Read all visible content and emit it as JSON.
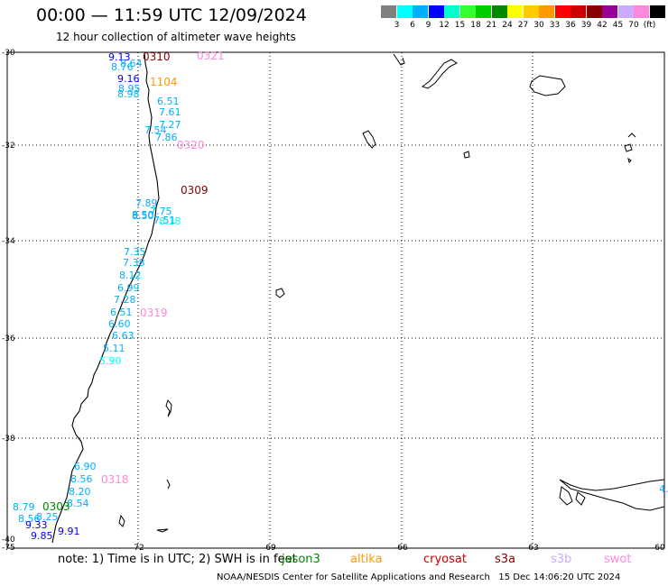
{
  "header": {
    "title": "00:00 — 11:59 UTC 12/09/2024",
    "subtitle": "12 hour collection of altimeter wave heights"
  },
  "colorbar": {
    "colors": [
      "#808080",
      "#00ffff",
      "#00b0ff",
      "#0000ff",
      "#00ffcc",
      "#33ff33",
      "#00cc00",
      "#008800",
      "#ffff00",
      "#ffcc00",
      "#ff9900",
      "#ff0000",
      "#cc0000",
      "#880000",
      "#990099",
      "#ccaaff",
      "#ff88dd",
      "#000000"
    ],
    "labels": [
      "3",
      "6",
      "9",
      "12",
      "15",
      "18",
      "21",
      "24",
      "27",
      "30",
      "33",
      "36",
      "39",
      "42",
      "45",
      "70",
      "(ft)"
    ]
  },
  "axes": {
    "lat_labels": [
      "-30",
      "-32",
      "-34",
      "-36",
      "-38",
      "-40"
    ],
    "lon_labels": [
      "-75",
      "-72",
      "-69",
      "-66",
      "-63",
      "-60"
    ]
  },
  "passes": [
    {
      "label": "0310",
      "color": "#880000"
    },
    {
      "label": "1104",
      "color": "#ff9900"
    },
    {
      "label": "0321",
      "color": "#ff88dd"
    },
    {
      "label": "0320",
      "color": "#ff88dd"
    },
    {
      "label": "0309",
      "color": "#880000"
    },
    {
      "label": "0319",
      "color": "#ff88dd"
    },
    {
      "label": "0318",
      "color": "#ff88dd"
    },
    {
      "label": "0303",
      "color": "#008800"
    }
  ],
  "wave_heights": [
    {
      "v": "9.13",
      "c": "#0000ff"
    },
    {
      "v": "8.76",
      "c": "#00b0ff"
    },
    {
      "v": "8.64",
      "c": "#00b0ff"
    },
    {
      "v": "9.16",
      "c": "#0000ff"
    },
    {
      "v": "8.95",
      "c": "#00b0ff"
    },
    {
      "v": "8.98",
      "c": "#00b0ff"
    },
    {
      "v": "6.51",
      "c": "#00b0ff"
    },
    {
      "v": "7.61",
      "c": "#00b0ff"
    },
    {
      "v": "7.27",
      "c": "#00b0ff"
    },
    {
      "v": "7.54",
      "c": "#00b0ff"
    },
    {
      "v": "7.86",
      "c": "#00b0ff"
    },
    {
      "v": "7.51",
      "c": "#00b0ff"
    },
    {
      "v": "7.75",
      "c": "#00b0ff"
    },
    {
      "v": "7.89",
      "c": "#00b0ff"
    },
    {
      "v": "8.50",
      "c": "#00b0ff"
    },
    {
      "v": "8.18",
      "c": "#00ffff"
    },
    {
      "v": "8.50",
      "c": "#00b0ff"
    },
    {
      "v": "7.35",
      "c": "#00b0ff"
    },
    {
      "v": "7.38",
      "c": "#00b0ff"
    },
    {
      "v": "8.12",
      "c": "#00b0ff"
    },
    {
      "v": "6.99",
      "c": "#00b0ff"
    },
    {
      "v": "7.28",
      "c": "#00b0ff"
    },
    {
      "v": "6.51",
      "c": "#00b0ff"
    },
    {
      "v": "6.60",
      "c": "#00b0ff"
    },
    {
      "v": "6.63",
      "c": "#00b0ff"
    },
    {
      "v": "5.11",
      "c": "#00b0ff"
    },
    {
      "v": "5.90",
      "c": "#00ffff"
    },
    {
      "v": "6.90",
      "c": "#00b0ff"
    },
    {
      "v": "8.56",
      "c": "#00b0ff"
    },
    {
      "v": "8.20",
      "c": "#00b0ff"
    },
    {
      "v": "8.54",
      "c": "#00b0ff"
    },
    {
      "v": "8.79",
      "c": "#00b0ff"
    },
    {
      "v": "8.56",
      "c": "#00b0ff"
    },
    {
      "v": "8.25",
      "c": "#00b0ff"
    },
    {
      "v": "9.33",
      "c": "#0000ff"
    },
    {
      "v": "9.91",
      "c": "#0000ff"
    },
    {
      "v": "9.85",
      "c": "#0000ff"
    },
    {
      "v": "4.",
      "c": "#00b0ff"
    }
  ],
  "note": {
    "text": "note: 1) Time is in UTC; 2) SWH is in feet"
  },
  "satellites": [
    {
      "name": "jason3",
      "color": "#008800"
    },
    {
      "name": "altika",
      "color": "#ff9900"
    },
    {
      "name": "cryosat",
      "color": "#cc0000"
    },
    {
      "name": "s3a",
      "color": "#880000"
    },
    {
      "name": "s3b",
      "color": "#ccaaff"
    },
    {
      "name": "swot",
      "color": "#ff88dd"
    }
  ],
  "credit": {
    "org": "NOAA/NESDIS Center for Satellite Applications and Research",
    "timestamp": "15 Dec 14:06:20 UTC 2024"
  }
}
